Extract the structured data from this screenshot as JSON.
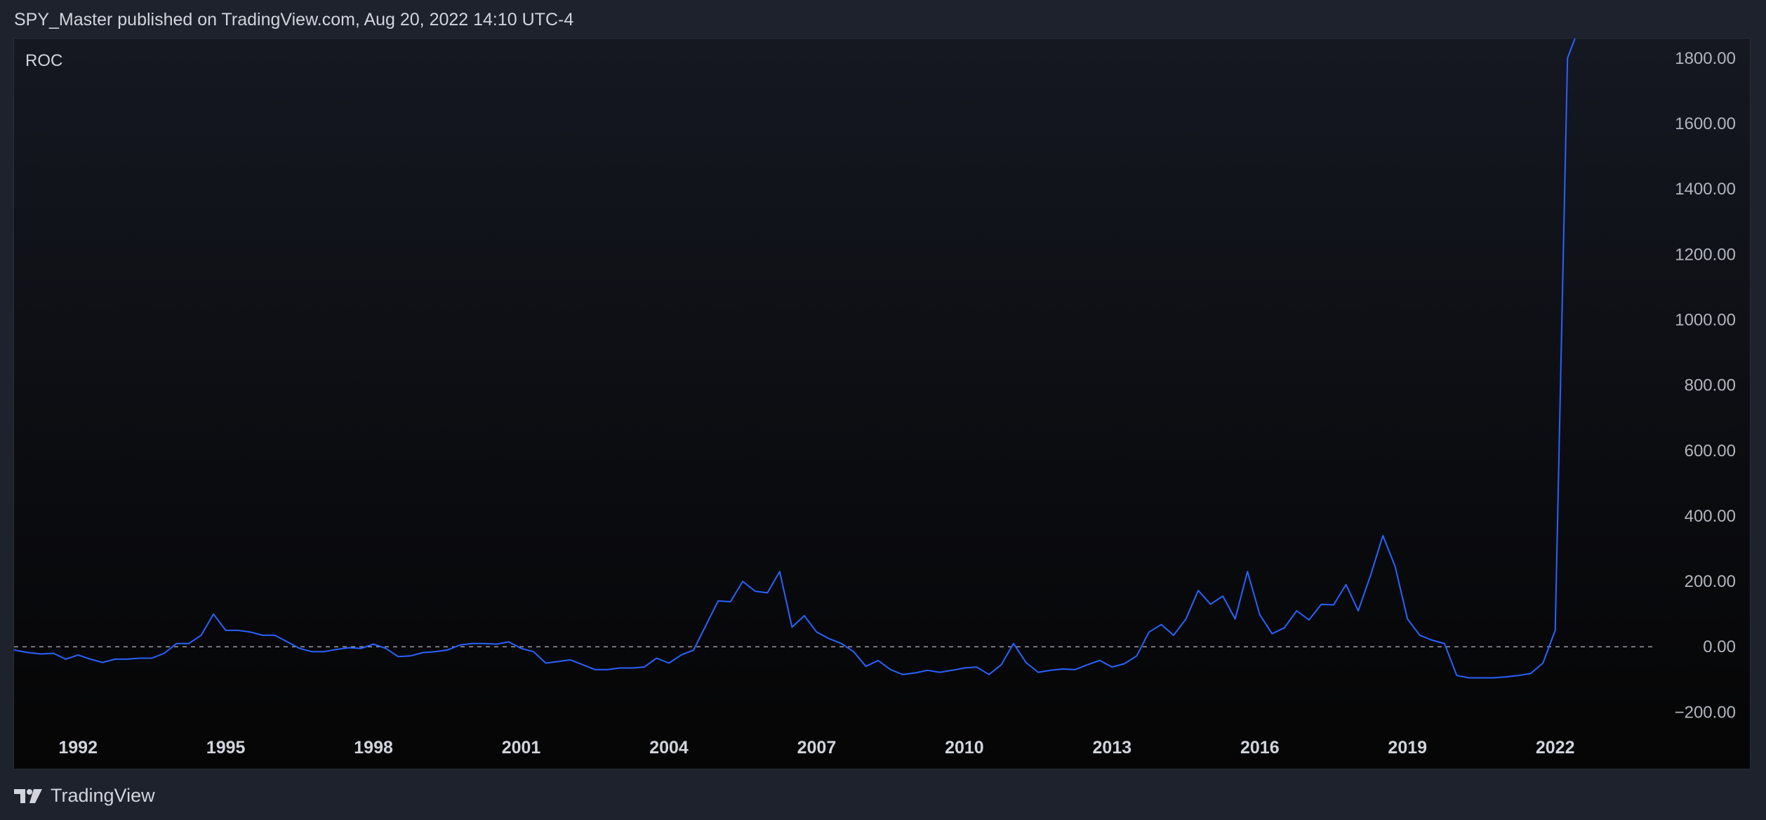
{
  "header": {
    "published_text": "SPY_Master published on TradingView.com, Aug 20, 2022 14:10 UTC-4"
  },
  "footer": {
    "brand": "TradingView",
    "logo_icon": "tradingview-logo-icon"
  },
  "colors": {
    "background": "#1e222d",
    "line": "#2962ff",
    "zero_line": "#b2b5be",
    "axis_text": "#b2b5be"
  },
  "chart_data": {
    "type": "line",
    "indicator": "ROC",
    "title": "",
    "xlabel": "",
    "ylabel": "",
    "x_tick_labels": [
      "1992",
      "1995",
      "1998",
      "2001",
      "2004",
      "2007",
      "2010",
      "2013",
      "2016",
      "2019",
      "2022"
    ],
    "y_tick_labels": [
      "1800.00",
      "1600.00",
      "1400.00",
      "1200.00",
      "1000.00",
      "800.00",
      "600.00",
      "400.00",
      "200.00",
      "0.00",
      "−200.00"
    ],
    "y_ticks": [
      1800,
      1600,
      1400,
      1200,
      1000,
      800,
      600,
      400,
      200,
      0,
      -200
    ],
    "xlim": [
      1990.7,
      2024.0
    ],
    "ylim": [
      -240,
      1860
    ],
    "zero_line": true,
    "grid": false,
    "series": [
      {
        "name": "",
        "x": [
          1990.7,
          1991.0,
          1991.25,
          1991.5,
          1991.75,
          1992.0,
          1992.25,
          1992.5,
          1992.75,
          1993.0,
          1993.25,
          1993.5,
          1993.75,
          1994.0,
          1994.25,
          1994.5,
          1994.75,
          1995.0,
          1995.25,
          1995.5,
          1995.75,
          1996.0,
          1996.25,
          1996.5,
          1996.75,
          1997.0,
          1997.25,
          1997.5,
          1997.75,
          1998.0,
          1998.25,
          1998.5,
          1998.75,
          1999.0,
          1999.25,
          1999.5,
          1999.75,
          2000.0,
          2000.25,
          2000.5,
          2000.75,
          2001.0,
          2001.25,
          2001.5,
          2001.75,
          2002.0,
          2002.25,
          2002.5,
          2002.75,
          2003.0,
          2003.25,
          2003.5,
          2003.75,
          2004.0,
          2004.25,
          2004.5,
          2004.75,
          2005.0,
          2005.25,
          2005.5,
          2005.75,
          2006.0,
          2006.25,
          2006.5,
          2006.75,
          2007.0,
          2007.25,
          2007.5,
          2007.75,
          2008.0,
          2008.25,
          2008.5,
          2008.75,
          2009.0,
          2009.25,
          2009.5,
          2009.75,
          2010.0,
          2010.25,
          2010.5,
          2010.75,
          2011.0,
          2011.25,
          2011.5,
          2011.75,
          2012.0,
          2012.25,
          2012.5,
          2012.75,
          2013.0,
          2013.25,
          2013.5,
          2013.75,
          2014.0,
          2014.25,
          2014.5,
          2014.75,
          2015.0,
          2015.25,
          2015.5,
          2015.75,
          2016.0,
          2016.25,
          2016.5,
          2016.75,
          2017.0,
          2017.25,
          2017.5,
          2017.75,
          2018.0,
          2018.25,
          2018.5,
          2018.75,
          2019.0,
          2019.25,
          2019.5,
          2019.75,
          2020.0,
          2020.25,
          2020.5,
          2020.75,
          2021.0,
          2021.25,
          2021.5,
          2021.75,
          2022.0,
          2022.25,
          2022.5
        ],
        "values": [
          -10,
          -18,
          -22,
          -20,
          -38,
          -25,
          -38,
          -48,
          -38,
          -38,
          -35,
          -35,
          -20,
          10,
          10,
          35,
          100,
          50,
          50,
          45,
          35,
          35,
          15,
          -5,
          -15,
          -15,
          -8,
          -3,
          -5,
          8,
          -5,
          -30,
          -28,
          -18,
          -15,
          -10,
          5,
          10,
          10,
          8,
          15,
          -5,
          -15,
          -50,
          -45,
          -40,
          -55,
          -70,
          -70,
          -65,
          -65,
          -62,
          -35,
          -50,
          -25,
          -10,
          65,
          140,
          138,
          200,
          170,
          165,
          230,
          60,
          95,
          45,
          25,
          10,
          -15,
          -60,
          -42,
          -70,
          -85,
          -80,
          -72,
          -78,
          -72,
          -65,
          -62,
          -85,
          -55,
          10,
          -48,
          -78,
          -72,
          -68,
          -70,
          -55,
          -42,
          -62,
          -52,
          -28,
          45,
          68,
          35,
          85,
          172,
          130,
          155,
          85,
          230,
          98,
          40,
          58,
          110,
          82,
          130,
          128,
          190,
          110,
          218,
          340,
          245,
          85,
          35,
          20,
          10,
          -88,
          -95,
          -95,
          -95,
          -92,
          -88,
          -82,
          -50,
          50,
          1800,
          1900
        ]
      }
    ]
  }
}
